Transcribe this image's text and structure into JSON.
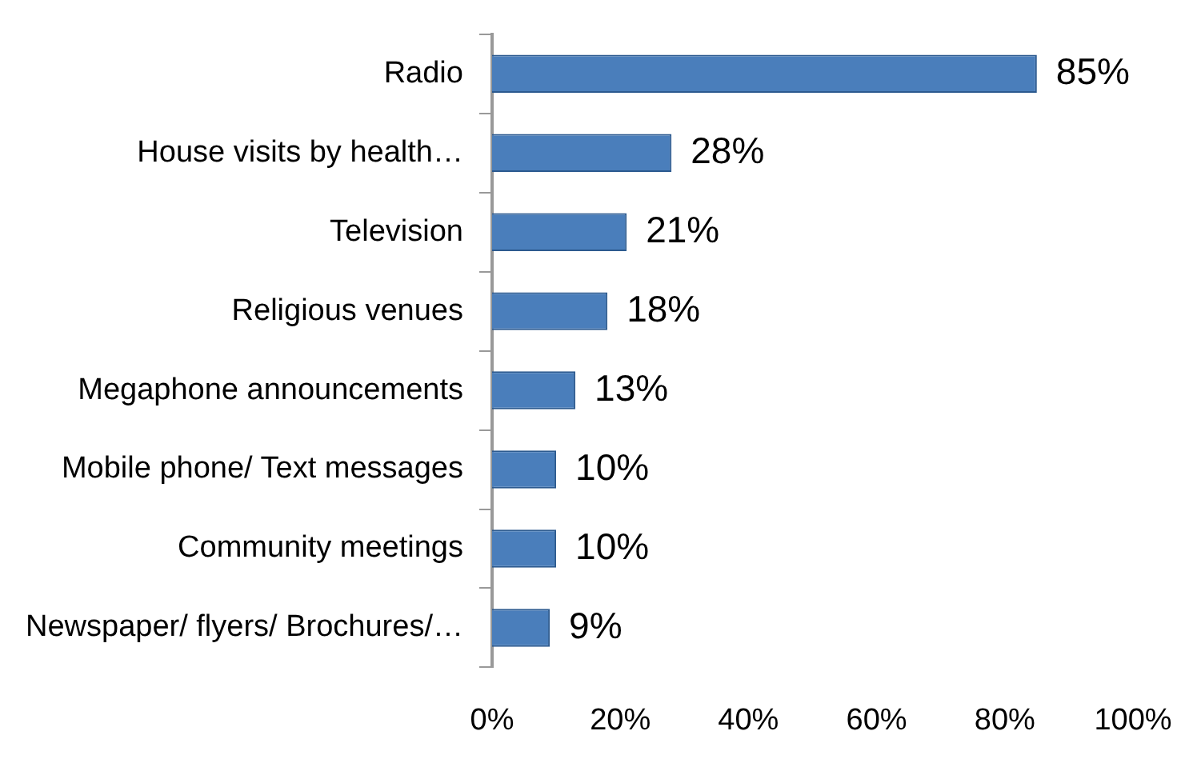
{
  "chart_data": {
    "type": "bar",
    "orientation": "horizontal",
    "categories": [
      "Radio",
      "House visits by health…",
      "Television",
      "Religious venues",
      "Megaphone announcements",
      "Mobile phone/ Text messages",
      "Community meetings",
      "Newspaper/ flyers/ Brochures/…"
    ],
    "values": [
      85,
      28,
      21,
      18,
      13,
      10,
      10,
      9
    ],
    "value_labels": [
      "85%",
      "28%",
      "21%",
      "18%",
      "13%",
      "10%",
      "10%",
      "9%"
    ],
    "color": "#4a7ebb",
    "xlim": [
      0,
      100
    ],
    "xticks": [
      {
        "value": 0,
        "label": "0%"
      },
      {
        "value": 20,
        "label": "20%"
      },
      {
        "value": 40,
        "label": "40%"
      },
      {
        "value": 60,
        "label": "60%"
      },
      {
        "value": 80,
        "label": "80%"
      },
      {
        "value": 100,
        "label": "100%"
      }
    ],
    "grid": false,
    "legend": false
  }
}
